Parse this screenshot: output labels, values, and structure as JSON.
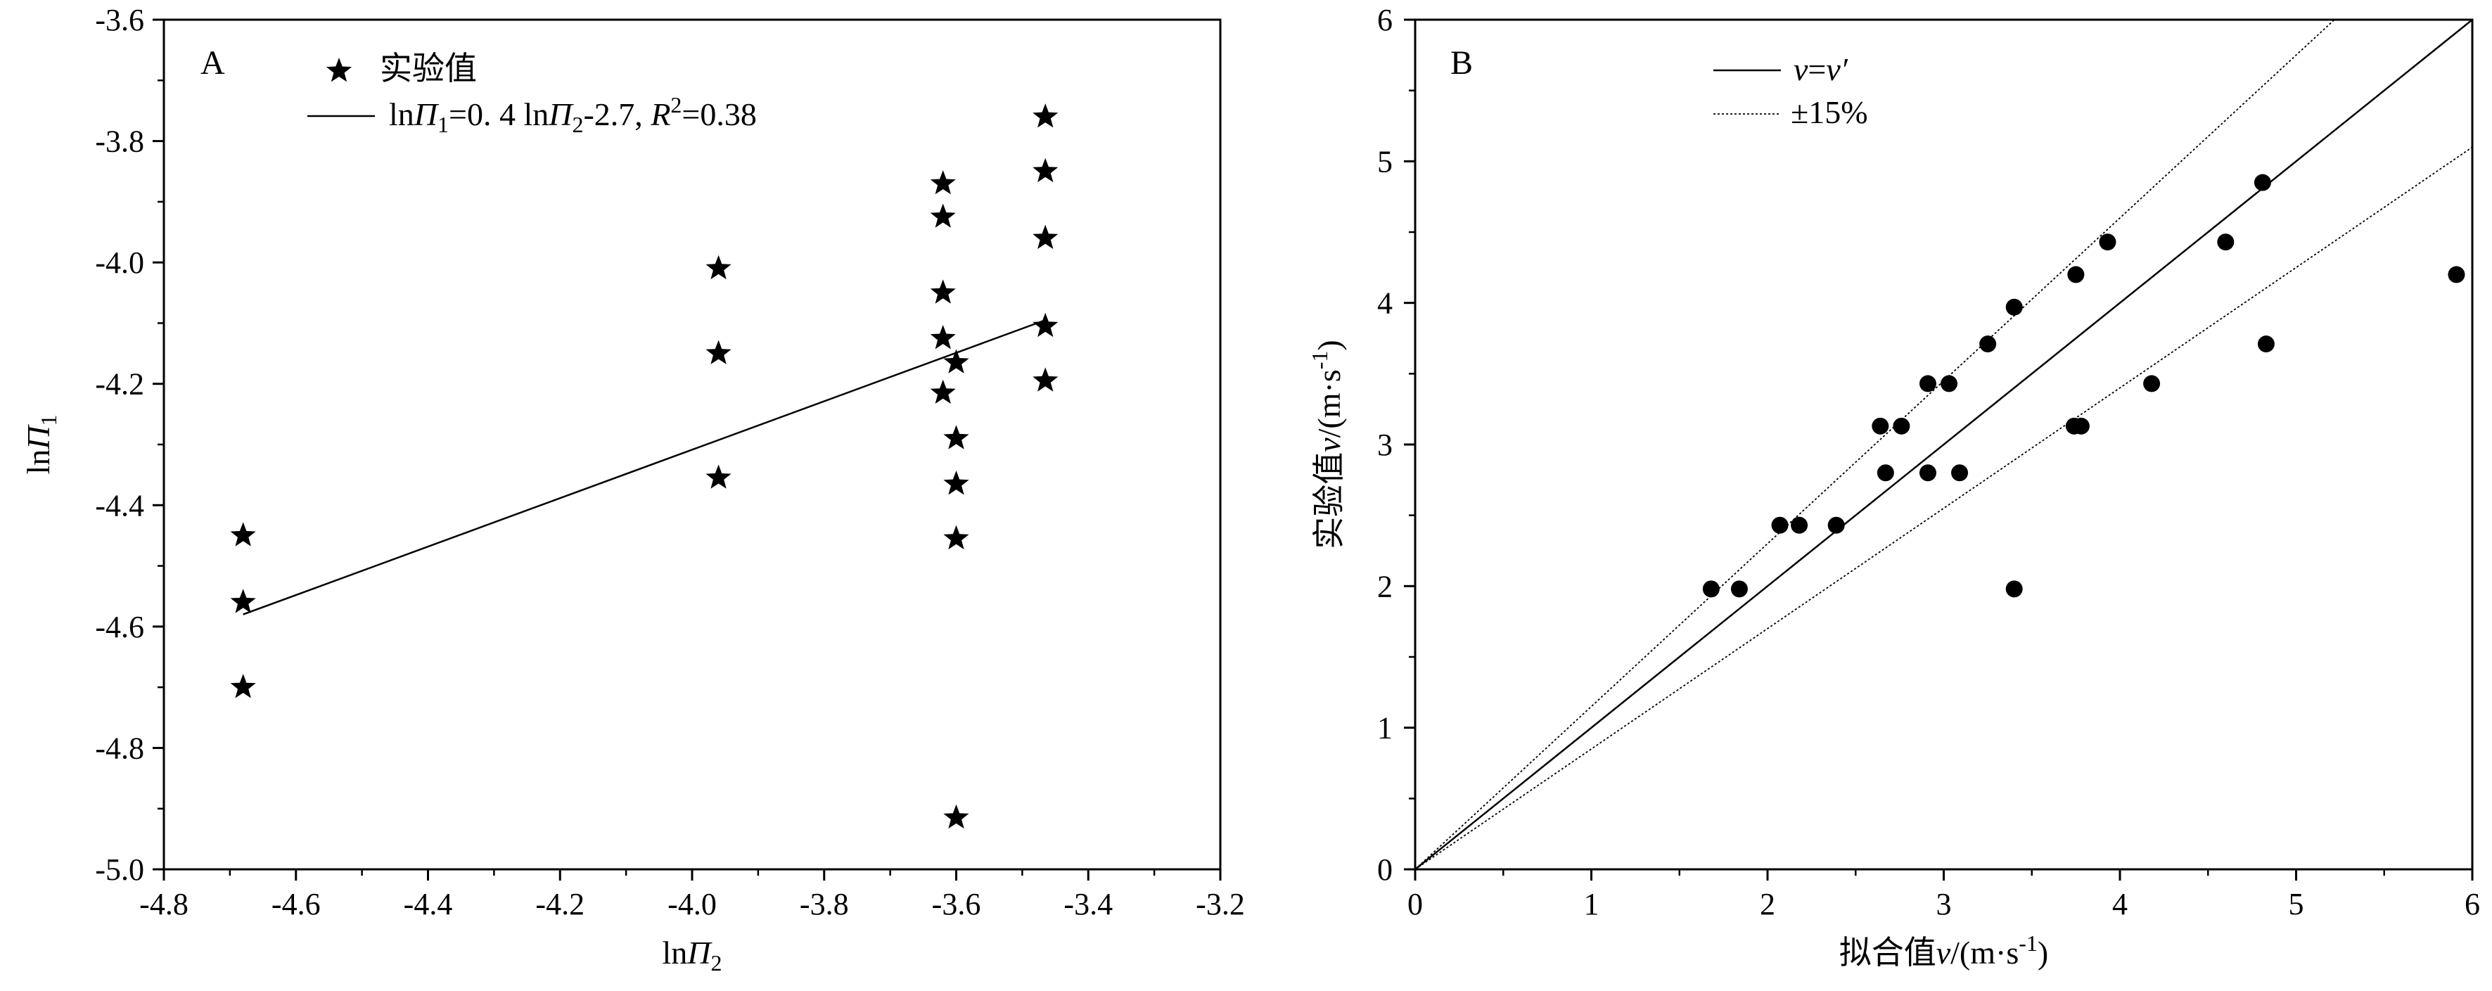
{
  "chart_data": [
    {
      "type": "scatter",
      "panel_label": "A",
      "xlabel": "lnΠ2",
      "ylabel": "lnΠ1",
      "xlim": [
        -4.8,
        -3.2
      ],
      "ylim": [
        -5.0,
        -3.6
      ],
      "xticks": [
        -4.8,
        -4.6,
        -4.4,
        -4.2,
        -4.0,
        -3.8,
        -3.6,
        -3.4,
        -3.2
      ],
      "yticks": [
        -5.0,
        -4.8,
        -4.6,
        -4.4,
        -4.2,
        -4.0,
        -3.8,
        -3.6
      ],
      "xtick_labels": [
        "-4.8",
        "-4.6",
        "-4.4",
        "-4.2",
        "-4.0",
        "-3.8",
        "-3.6",
        "-3.4",
        "-3.2"
      ],
      "ytick_labels": [
        "-5.0",
        "-4.8",
        "-4.6",
        "-4.4",
        "-4.2",
        "-4.0",
        "-3.8",
        "-3.6"
      ],
      "legend": {
        "position": "top-left",
        "entries": [
          {
            "marker": "star",
            "label": "实验值"
          },
          {
            "marker": "line",
            "label_parts": [
              "ln",
              "Π",
              "1",
              "=0. 4 ln",
              "Π",
              "2",
              "-2.7, ",
              "R",
              "2",
              "=0.38"
            ]
          }
        ]
      },
      "series": [
        {
          "name": "实验值",
          "marker": "star",
          "points": [
            {
              "x": -4.68,
              "y": -4.45
            },
            {
              "x": -4.68,
              "y": -4.56
            },
            {
              "x": -4.68,
              "y": -4.7
            },
            {
              "x": -3.96,
              "y": -4.01
            },
            {
              "x": -3.96,
              "y": -4.15
            },
            {
              "x": -3.96,
              "y": -4.355
            },
            {
              "x": -3.62,
              "y": -3.87
            },
            {
              "x": -3.62,
              "y": -3.925
            },
            {
              "x": -3.62,
              "y": -4.05
            },
            {
              "x": -3.62,
              "y": -4.125
            },
            {
              "x": -3.62,
              "y": -4.215
            },
            {
              "x": -3.6,
              "y": -4.165
            },
            {
              "x": -3.6,
              "y": -4.29
            },
            {
              "x": -3.6,
              "y": -4.365
            },
            {
              "x": -3.6,
              "y": -4.455
            },
            {
              "x": -3.6,
              "y": -4.915
            },
            {
              "x": -3.465,
              "y": -3.76
            },
            {
              "x": -3.465,
              "y": -3.85
            },
            {
              "x": -3.465,
              "y": -3.96
            },
            {
              "x": -3.465,
              "y": -4.105
            },
            {
              "x": -3.465,
              "y": -4.195
            }
          ]
        },
        {
          "name": "fit",
          "type": "line",
          "points": [
            {
              "x": -4.68,
              "y": -4.58
            },
            {
              "x": -3.465,
              "y": -4.095
            }
          ]
        }
      ]
    },
    {
      "type": "scatter",
      "panel_label": "B",
      "xlabel_parts": [
        "拟合值",
        "v",
        "/(m·s",
        "-1",
        ")"
      ],
      "ylabel_parts": [
        "实验值",
        "v",
        "/(m·s",
        "-1",
        ")"
      ],
      "xlim": [
        0,
        6
      ],
      "ylim": [
        0,
        6
      ],
      "xticks": [
        0,
        1,
        2,
        3,
        4,
        5,
        6
      ],
      "yticks": [
        0,
        1,
        2,
        3,
        4,
        5,
        6
      ],
      "xtick_labels": [
        "0",
        "1",
        "2",
        "3",
        "4",
        "5",
        "6"
      ],
      "ytick_labels": [
        "0",
        "1",
        "2",
        "3",
        "4",
        "5",
        "6"
      ],
      "legend": {
        "position": "top-left",
        "entries": [
          {
            "style": "solid",
            "label_parts": [
              "v",
              "=",
              "v′"
            ]
          },
          {
            "style": "dotted",
            "label": "±15%"
          }
        ]
      },
      "lines": [
        {
          "label": "v=v′",
          "slope": 1.0,
          "style": "solid"
        },
        {
          "label": "+15%",
          "slope": 1.15,
          "style": "dotted"
        },
        {
          "label": "-15%",
          "slope": 0.85,
          "style": "dotted"
        }
      ],
      "series": [
        {
          "name": "points",
          "marker": "circle",
          "points": [
            {
              "x": 1.68,
              "y": 1.98
            },
            {
              "x": 1.84,
              "y": 1.98
            },
            {
              "x": 3.4,
              "y": 1.98
            },
            {
              "x": 2.07,
              "y": 2.43
            },
            {
              "x": 2.18,
              "y": 2.43
            },
            {
              "x": 2.39,
              "y": 2.43
            },
            {
              "x": 2.67,
              "y": 2.8
            },
            {
              "x": 2.91,
              "y": 2.8
            },
            {
              "x": 3.09,
              "y": 2.8
            },
            {
              "x": 2.64,
              "y": 3.13
            },
            {
              "x": 2.76,
              "y": 3.13
            },
            {
              "x": 3.74,
              "y": 3.13
            },
            {
              "x": 3.78,
              "y": 3.13
            },
            {
              "x": 2.91,
              "y": 3.43
            },
            {
              "x": 3.03,
              "y": 3.43
            },
            {
              "x": 4.18,
              "y": 3.43
            },
            {
              "x": 3.25,
              "y": 3.71
            },
            {
              "x": 4.83,
              "y": 3.71
            },
            {
              "x": 3.4,
              "y": 3.97
            },
            {
              "x": 3.75,
              "y": 4.2
            },
            {
              "x": 5.91,
              "y": 4.2
            },
            {
              "x": 3.93,
              "y": 4.43
            },
            {
              "x": 4.6,
              "y": 4.43
            },
            {
              "x": 4.81,
              "y": 4.85
            }
          ]
        }
      ]
    }
  ]
}
